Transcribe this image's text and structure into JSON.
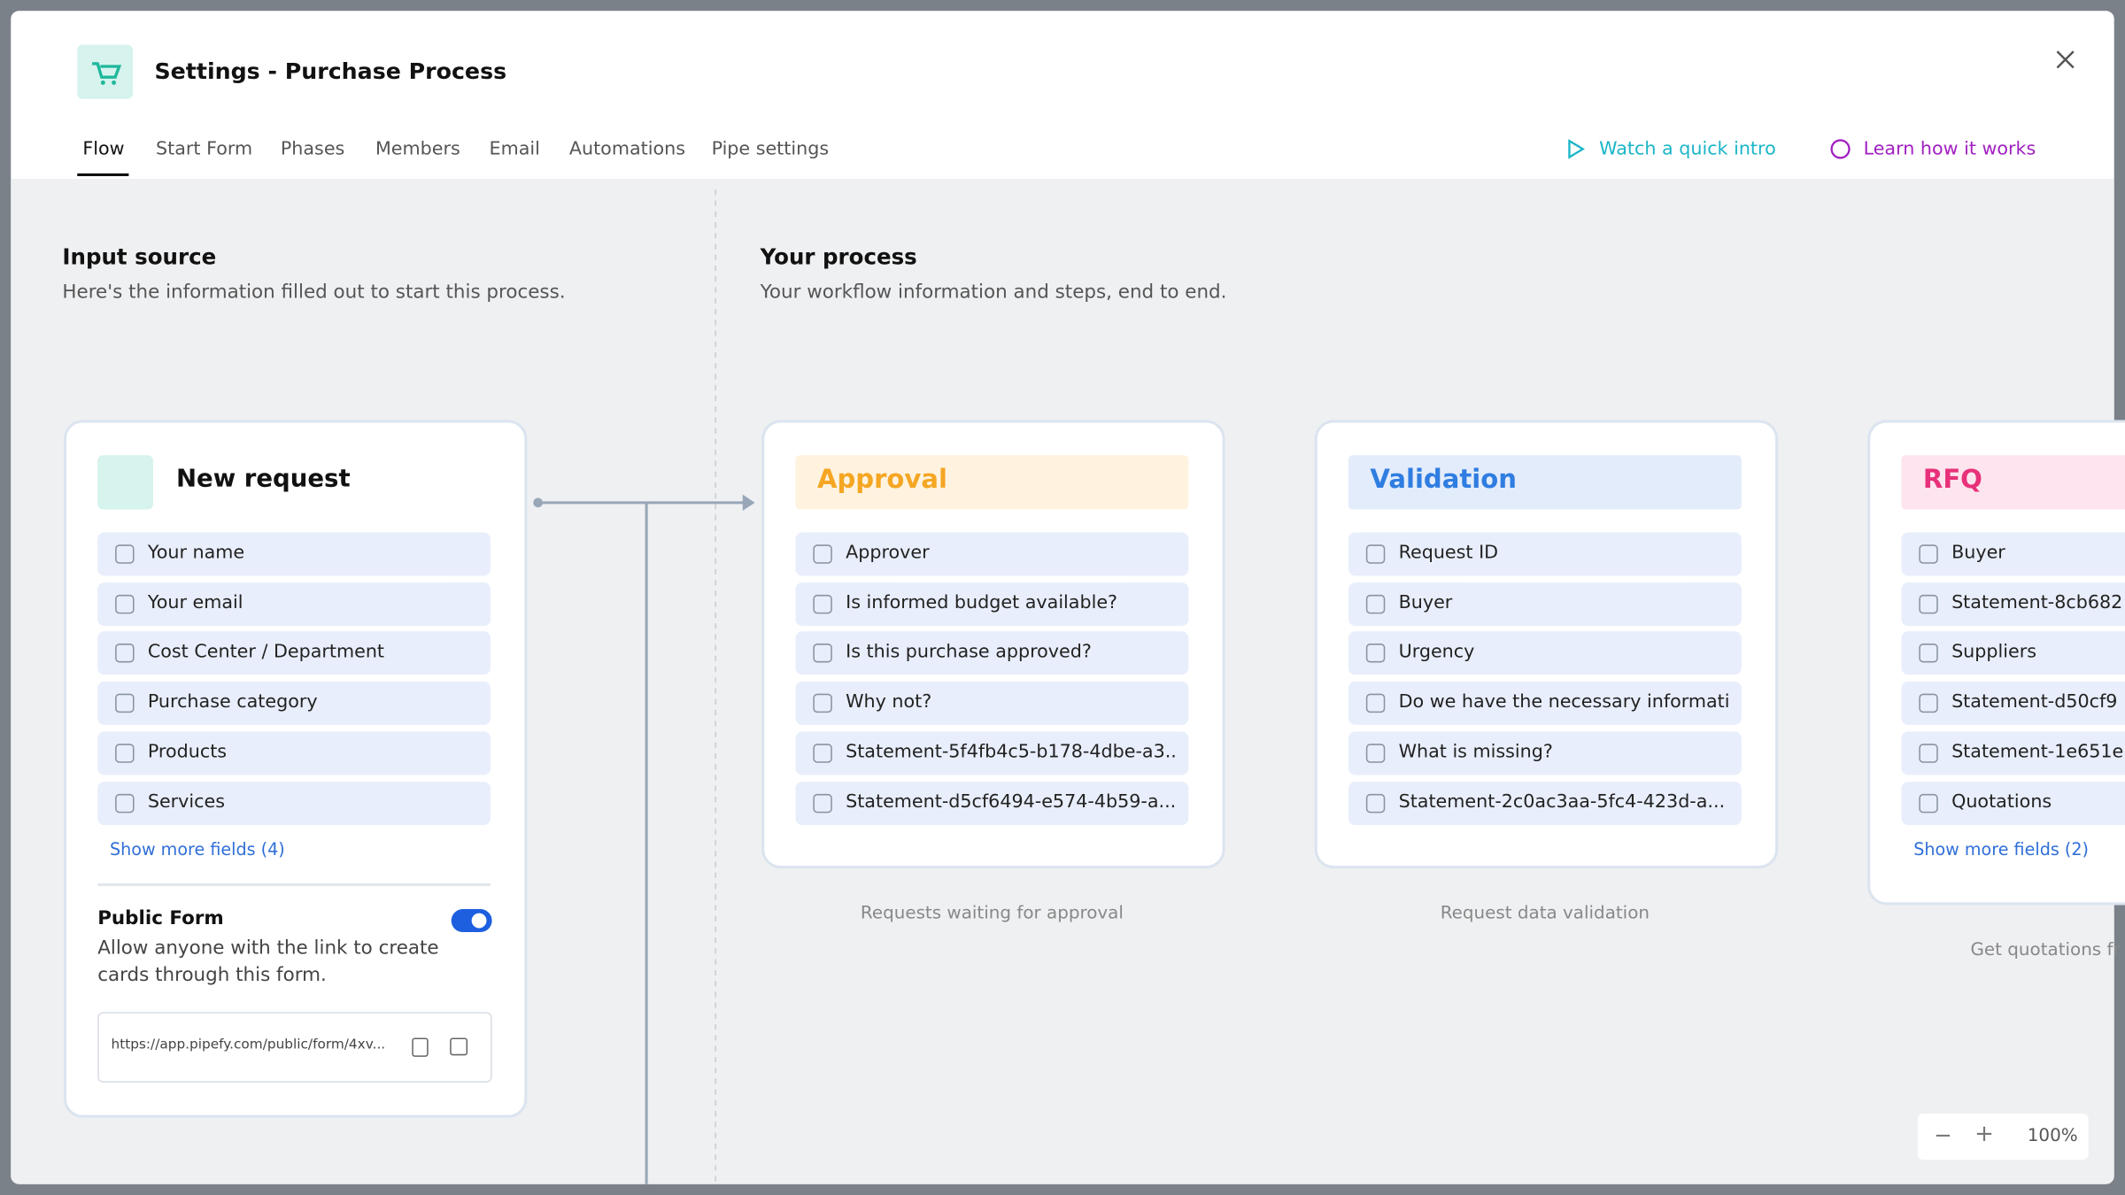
{
  "header": {
    "title": "Settings - Purchase Process"
  },
  "tabs": [
    "Flow",
    "Start Form",
    "Phases",
    "Members",
    "Email",
    "Automations",
    "Pipe settings"
  ],
  "links": {
    "intro": "Watch a quick intro",
    "learn": "Learn how it works"
  },
  "input_source": {
    "title": "Input source",
    "subtitle": "Here's the information filled out to start this process.",
    "card": {
      "title": "New request",
      "fields": [
        "Your name",
        "Your email",
        "Cost Center / Department",
        "Purchase category",
        "Products",
        "Services"
      ],
      "show_more": "Show more fields (4)",
      "public_form": {
        "title": "Public Form",
        "description": "Allow anyone with the link to create cards through this form.",
        "url": "https://app.pipefy.com/public/form/4xv..."
      }
    }
  },
  "process": {
    "title": "Your process",
    "subtitle": "Your workflow information and steps, end to end.",
    "phases": [
      {
        "title": "Approval",
        "color": "#f5a623",
        "background": "#fff3e0",
        "fields": [
          "Approver",
          "Is informed budget available?",
          "Is this purchase approved?",
          "Why not?",
          "Statement-5f4fb4c5-b178-4dbe-a3...",
          "Statement-d5cf6494-e574-4b59-a..."
        ],
        "caption": "Requests waiting for approval"
      },
      {
        "title": "Validation",
        "color": "#2f7de1",
        "background": "#e3ecfb",
        "fields": [
          "Request ID",
          "Buyer",
          "Urgency",
          "Do we have the necessary informati...",
          "What is missing?",
          "Statement-2c0ac3aa-5fc4-423d-a..."
        ],
        "caption": "Request data validation"
      },
      {
        "title": "RFQ",
        "color": "#e8317a",
        "background": "#fde4ee",
        "fields": [
          "Buyer",
          "Statement-8cb682",
          "Suppliers",
          "Statement-d50cf9",
          "Statement-1e651e",
          "Quotations"
        ],
        "show_more": "Show more fields (2)",
        "caption": "Get quotations fr"
      }
    ]
  },
  "zoom": "100%"
}
